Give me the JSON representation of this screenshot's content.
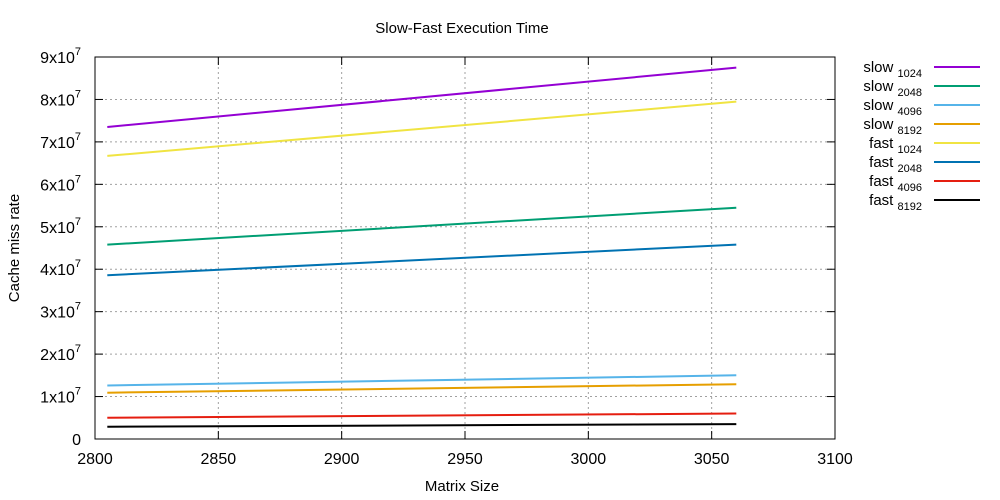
{
  "chart_data": {
    "type": "line",
    "title": "Slow-Fast Execution Time",
    "xlabel": "Matrix Size",
    "ylabel": "Cache miss rate",
    "xlim": [
      2800,
      3100
    ],
    "ylim": [
      0,
      90000000
    ],
    "x_ticks": [
      2800,
      2850,
      2900,
      2950,
      3000,
      3050,
      3100
    ],
    "y_ticks": [
      {
        "value": 0,
        "base": "0",
        "exp": ""
      },
      {
        "value": 10000000,
        "base": "1x10",
        "exp": "7"
      },
      {
        "value": 20000000,
        "base": "2x10",
        "exp": "7"
      },
      {
        "value": 30000000,
        "base": "3x10",
        "exp": "7"
      },
      {
        "value": 40000000,
        "base": "4x10",
        "exp": "7"
      },
      {
        "value": 50000000,
        "base": "5x10",
        "exp": "7"
      },
      {
        "value": 60000000,
        "base": "6x10",
        "exp": "7"
      },
      {
        "value": 70000000,
        "base": "7x10",
        "exp": "7"
      },
      {
        "value": 80000000,
        "base": "8x10",
        "exp": "7"
      },
      {
        "value": 90000000,
        "base": "9x10",
        "exp": "7"
      }
    ],
    "grid": true,
    "legend_position": "outside-right",
    "series": [
      {
        "name": "slow",
        "sub": "1024",
        "color": "#9400d3",
        "x": [
          2805,
          3060
        ],
        "y": [
          73500000,
          87500000
        ]
      },
      {
        "name": "slow",
        "sub": "2048",
        "color": "#009e73",
        "x": [
          2805,
          3060
        ],
        "y": [
          45800000,
          54500000
        ]
      },
      {
        "name": "slow",
        "sub": "4096",
        "color": "#56b4e9",
        "x": [
          2805,
          3060
        ],
        "y": [
          12600000,
          15000000
        ]
      },
      {
        "name": "slow",
        "sub": "8192",
        "color": "#e69f00",
        "x": [
          2805,
          3060
        ],
        "y": [
          10900000,
          12900000
        ]
      },
      {
        "name": "fast",
        "sub": "1024",
        "color": "#f0e442",
        "x": [
          2805,
          3060
        ],
        "y": [
          66700000,
          79500000
        ]
      },
      {
        "name": "fast",
        "sub": "2048",
        "color": "#0072b2",
        "x": [
          2805,
          3060
        ],
        "y": [
          38600000,
          45800000
        ]
      },
      {
        "name": "fast",
        "sub": "4096",
        "color": "#e51e10",
        "x": [
          2805,
          3060
        ],
        "y": [
          5000000,
          6000000
        ]
      },
      {
        "name": "fast",
        "sub": "8192",
        "color": "#000000",
        "x": [
          2805,
          3060
        ],
        "y": [
          2900000,
          3500000
        ]
      }
    ]
  }
}
